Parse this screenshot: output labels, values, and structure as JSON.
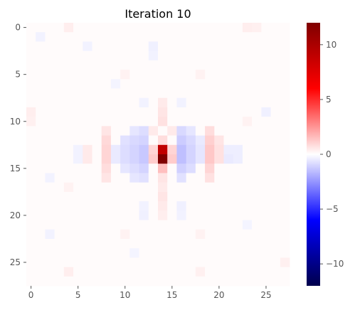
{
  "chart_data": {
    "type": "heatmap",
    "title": "Iteration 10",
    "rows": 28,
    "cols": 28,
    "xticks": [
      0,
      5,
      10,
      15,
      20,
      25
    ],
    "yticks": [
      0,
      5,
      10,
      15,
      20,
      25
    ],
    "colorbar": {
      "colormap": "seismic",
      "vmin": -12,
      "vmax": 12,
      "ticks": [
        10,
        5,
        0,
        -5,
        -10
      ],
      "tick_labels": [
        "10",
        "5",
        "0",
        "−5",
        "−10"
      ]
    },
    "default_value": 0.1,
    "cells": [
      {
        "r": 14,
        "c": 14,
        "v": 12
      },
      {
        "r": 13,
        "c": 14,
        "v": 9
      },
      {
        "r": 15,
        "c": 14,
        "v": 1.5
      },
      {
        "r": 14,
        "c": 13,
        "v": 1.2
      },
      {
        "r": 14,
        "c": 15,
        "v": 1.2
      },
      {
        "r": 13,
        "c": 13,
        "v": 1.0
      },
      {
        "r": 13,
        "c": 15,
        "v": 1.0
      },
      {
        "r": 12,
        "c": 14,
        "v": 0.8
      },
      {
        "r": 16,
        "c": 14,
        "v": 0.6
      },
      {
        "r": 11,
        "c": 12,
        "v": -0.8
      },
      {
        "r": 12,
        "c": 12,
        "v": -1.0
      },
      {
        "r": 13,
        "c": 12,
        "v": -1.3
      },
      {
        "r": 14,
        "c": 12,
        "v": -1.3
      },
      {
        "r": 15,
        "c": 12,
        "v": -1.0
      },
      {
        "r": 16,
        "c": 12,
        "v": -0.7
      },
      {
        "r": 11,
        "c": 11,
        "v": -0.6
      },
      {
        "r": 12,
        "c": 11,
        "v": -0.9
      },
      {
        "r": 13,
        "c": 11,
        "v": -1.0
      },
      {
        "r": 14,
        "c": 11,
        "v": -1.0
      },
      {
        "r": 15,
        "c": 11,
        "v": -0.8
      },
      {
        "r": 16,
        "c": 11,
        "v": -0.6
      },
      {
        "r": 12,
        "c": 10,
        "v": -0.7
      },
      {
        "r": 13,
        "c": 10,
        "v": -0.8
      },
      {
        "r": 14,
        "c": 10,
        "v": -0.8
      },
      {
        "r": 15,
        "c": 10,
        "v": -0.6
      },
      {
        "r": 13,
        "c": 9,
        "v": -0.5
      },
      {
        "r": 14,
        "c": 9,
        "v": -0.5
      },
      {
        "r": 11,
        "c": 16,
        "v": -0.9
      },
      {
        "r": 12,
        "c": 16,
        "v": -1.2
      },
      {
        "r": 13,
        "c": 16,
        "v": -1.5
      },
      {
        "r": 14,
        "c": 16,
        "v": -1.5
      },
      {
        "r": 15,
        "c": 16,
        "v": -1.1
      },
      {
        "r": 16,
        "c": 16,
        "v": -0.7
      },
      {
        "r": 11,
        "c": 17,
        "v": -0.6
      },
      {
        "r": 12,
        "c": 17,
        "v": -0.9
      },
      {
        "r": 13,
        "c": 17,
        "v": -1.0
      },
      {
        "r": 14,
        "c": 17,
        "v": -1.0
      },
      {
        "r": 15,
        "c": 17,
        "v": -0.8
      },
      {
        "r": 12,
        "c": 18,
        "v": -0.5
      },
      {
        "r": 13,
        "c": 18,
        "v": -0.6
      },
      {
        "r": 14,
        "c": 18,
        "v": -0.6
      },
      {
        "r": 11,
        "c": 13,
        "v": 0.5
      },
      {
        "r": 11,
        "c": 15,
        "v": 0.5
      },
      {
        "r": 10,
        "c": 14,
        "v": 0.7
      },
      {
        "r": 9,
        "c": 14,
        "v": 0.6
      },
      {
        "r": 8,
        "c": 14,
        "v": 0.5
      },
      {
        "r": 17,
        "c": 14,
        "v": 0.5
      },
      {
        "r": 18,
        "c": 14,
        "v": 0.6
      },
      {
        "r": 19,
        "c": 14,
        "v": 0.5
      },
      {
        "r": 20,
        "c": 14,
        "v": 0.4
      },
      {
        "r": 11,
        "c": 8,
        "v": 0.6
      },
      {
        "r": 12,
        "c": 8,
        "v": 0.9
      },
      {
        "r": 13,
        "c": 8,
        "v": 1.0
      },
      {
        "r": 14,
        "c": 8,
        "v": 1.0
      },
      {
        "r": 15,
        "c": 8,
        "v": 0.8
      },
      {
        "r": 16,
        "c": 8,
        "v": 0.6
      },
      {
        "r": 11,
        "c": 19,
        "v": 0.8
      },
      {
        "r": 12,
        "c": 19,
        "v": 1.1
      },
      {
        "r": 13,
        "c": 19,
        "v": 1.3
      },
      {
        "r": 14,
        "c": 19,
        "v": 1.3
      },
      {
        "r": 15,
        "c": 19,
        "v": 1.0
      },
      {
        "r": 16,
        "c": 19,
        "v": 0.7
      },
      {
        "r": 12,
        "c": 20,
        "v": 0.6
      },
      {
        "r": 13,
        "c": 20,
        "v": 0.7
      },
      {
        "r": 14,
        "c": 20,
        "v": 0.7
      },
      {
        "r": 13,
        "c": 6,
        "v": 0.5
      },
      {
        "r": 14,
        "c": 6,
        "v": 0.5
      },
      {
        "r": 13,
        "c": 21,
        "v": -0.4
      },
      {
        "r": 14,
        "c": 21,
        "v": -0.5
      },
      {
        "r": 13,
        "c": 22,
        "v": -0.4
      },
      {
        "r": 14,
        "c": 22,
        "v": -0.4
      },
      {
        "r": 13,
        "c": 5,
        "v": -0.3
      },
      {
        "r": 14,
        "c": 5,
        "v": -0.3
      },
      {
        "r": 2,
        "c": 13,
        "v": -0.35
      },
      {
        "r": 3,
        "c": 13,
        "v": -0.3
      },
      {
        "r": 8,
        "c": 12,
        "v": -0.3
      },
      {
        "r": 19,
        "c": 12,
        "v": -0.3
      },
      {
        "r": 20,
        "c": 12,
        "v": -0.35
      },
      {
        "r": 19,
        "c": 16,
        "v": -0.35
      },
      {
        "r": 20,
        "c": 16,
        "v": -0.3
      },
      {
        "r": 8,
        "c": 16,
        "v": -0.3
      },
      {
        "r": 1,
        "c": 1,
        "v": -0.3
      },
      {
        "r": 2,
        "c": 6,
        "v": -0.3
      },
      {
        "r": 22,
        "c": 2,
        "v": -0.3
      },
      {
        "r": 9,
        "c": 25,
        "v": -0.35
      },
      {
        "r": 16,
        "c": 2,
        "v": -0.3
      },
      {
        "r": 21,
        "c": 23,
        "v": -0.25
      },
      {
        "r": 24,
        "c": 11,
        "v": -0.25
      },
      {
        "r": 6,
        "c": 9,
        "v": -0.25
      },
      {
        "r": 0,
        "c": 4,
        "v": 0.4
      },
      {
        "r": 0,
        "c": 23,
        "v": 0.4
      },
      {
        "r": 0,
        "c": 24,
        "v": 0.35
      },
      {
        "r": 9,
        "c": 0,
        "v": 0.4
      },
      {
        "r": 10,
        "c": 0,
        "v": 0.35
      },
      {
        "r": 26,
        "c": 4,
        "v": 0.4
      },
      {
        "r": 26,
        "c": 18,
        "v": 0.35
      },
      {
        "r": 25,
        "c": 27,
        "v": 0.35
      },
      {
        "r": 5,
        "c": 10,
        "v": 0.3
      },
      {
        "r": 22,
        "c": 10,
        "v": 0.3
      },
      {
        "r": 5,
        "c": 18,
        "v": 0.3
      },
      {
        "r": 22,
        "c": 18,
        "v": 0.3
      },
      {
        "r": 17,
        "c": 4,
        "v": 0.3
      },
      {
        "r": 10,
        "c": 23,
        "v": 0.3
      }
    ]
  }
}
